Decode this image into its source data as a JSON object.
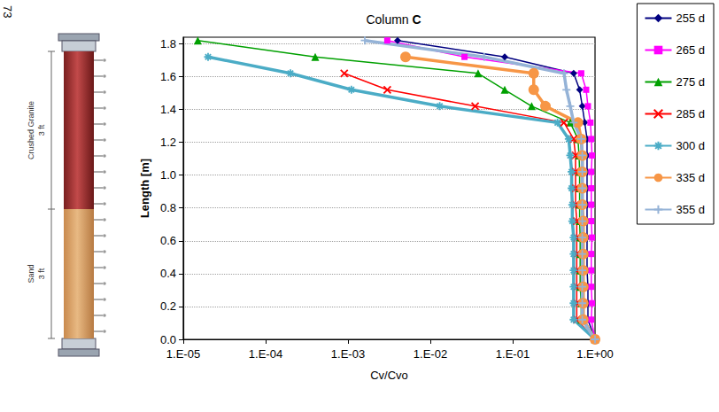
{
  "chart_data": {
    "type": "line",
    "title": "Column C",
    "x_label": "Cv/Cvo",
    "y_label": "Length [m]",
    "log": "x",
    "grid": true,
    "legend": "right",
    "xlim": [
      1e-05,
      1
    ],
    "xticks": [
      {
        "value": 1e-05,
        "label": "1.E-05"
      },
      {
        "value": 0.0001,
        "label": "1.E-04"
      },
      {
        "value": 0.001,
        "label": "1.E-03"
      },
      {
        "value": 0.01,
        "label": "1.E-02"
      },
      {
        "value": 0.1,
        "label": "1.E-01"
      },
      {
        "value": 1,
        "label": "1.E+00"
      }
    ],
    "ylim": [
      0,
      1.84
    ],
    "yticks": [
      {
        "value": 0,
        "label": "0.0"
      },
      0.2,
      0.4,
      0.6,
      0.8,
      {
        "value": 1,
        "label": "1.0"
      },
      1.2,
      1.4,
      1.6,
      1.8
    ],
    "y": [
      0,
      0.12,
      0.22,
      0.32,
      0.42,
      0.52,
      0.62,
      0.72,
      0.82,
      0.92,
      1.02,
      1.12,
      1.22,
      1.32,
      1.42,
      1.52,
      1.62,
      1.72,
      1.82
    ],
    "series": [
      {
        "name": "255 d",
        "color": "#000080",
        "marker": "diamond",
        "line_style": "thin",
        "values": [
          1,
          0.82,
          0.82,
          0.82,
          0.8,
          0.8,
          0.8,
          0.8,
          0.8,
          0.8,
          0.8,
          0.8,
          0.8,
          0.75,
          0.7,
          0.65,
          0.55,
          0.08,
          0.004
        ]
      },
      {
        "name": "265 d",
        "color": "#FF00FF",
        "marker": "square",
        "line_style": "thin",
        "values": [
          1,
          0.9,
          0.92,
          0.9,
          0.9,
          0.9,
          0.92,
          0.9,
          0.9,
          0.9,
          0.9,
          0.92,
          0.9,
          0.88,
          0.82,
          0.78,
          0.68,
          0.026,
          0.003
        ]
      },
      {
        "name": "275 d",
        "color": "#00A000",
        "marker": "triangle",
        "line_style": "thin",
        "values": [
          1,
          0.68,
          0.68,
          0.66,
          0.66,
          0.66,
          0.66,
          0.65,
          0.65,
          0.65,
          0.65,
          0.64,
          0.62,
          0.5,
          0.17,
          0.08,
          0.038,
          0.0004,
          1.5e-05
        ]
      },
      {
        "name": "285 d",
        "color": "#FF0000",
        "marker": "x",
        "line_style": "thin",
        "values": [
          1,
          0.6,
          0.6,
          0.6,
          0.6,
          0.6,
          0.6,
          0.6,
          0.58,
          0.58,
          0.58,
          0.58,
          0.55,
          0.42,
          0.035,
          0.003,
          0.0009,
          null,
          null
        ]
      },
      {
        "name": "300 d",
        "color": "#4BACC6",
        "marker": "star",
        "line_style": "thick",
        "values": [
          1,
          0.55,
          0.55,
          0.55,
          0.55,
          0.55,
          0.55,
          0.53,
          0.53,
          0.52,
          0.52,
          0.5,
          0.48,
          0.35,
          0.013,
          0.0011,
          0.0002,
          2e-05,
          null
        ]
      },
      {
        "name": "335 d",
        "color": "#F79646",
        "marker": "circle",
        "line_style": "thick",
        "values": [
          1,
          0.72,
          0.72,
          0.72,
          0.72,
          0.72,
          0.72,
          0.72,
          0.7,
          0.7,
          0.7,
          0.7,
          0.68,
          0.62,
          0.25,
          0.18,
          0.18,
          0.005,
          null
        ]
      },
      {
        "name": "355 d",
        "color": "#95B3D7",
        "marker": "plus",
        "line_style": "thick",
        "values": [
          1,
          0.7,
          0.7,
          0.7,
          0.7,
          0.7,
          0.7,
          0.7,
          0.7,
          0.7,
          0.7,
          0.7,
          0.68,
          0.55,
          0.5,
          0.45,
          0.42,
          0.045,
          0.0016
        ]
      }
    ],
    "annotations": {
      "page": "73",
      "layers": [
        {
          "name": "Crushed Granite",
          "thickness": "3 ft"
        },
        {
          "name": "Sand",
          "thickness": "3 ft"
        }
      ]
    }
  }
}
